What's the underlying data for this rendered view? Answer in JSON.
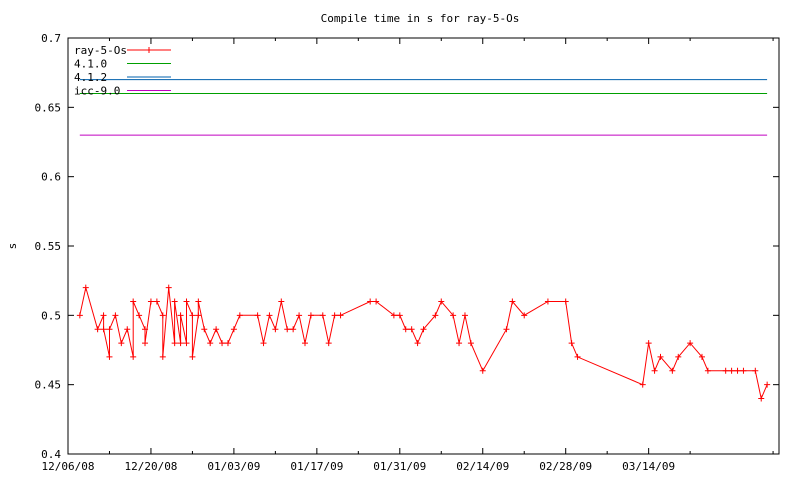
{
  "chart_data": {
    "type": "line",
    "title": "Compile time in s for ray-5-Os",
    "xlabel": "",
    "ylabel": "s",
    "ylim": [
      0.4,
      0.7
    ],
    "yticks": [
      "0.4",
      "0.45",
      "0.5",
      "0.55",
      "0.6",
      "0.65",
      "0.7"
    ],
    "xlim": [
      "12/06/08",
      "04/05/09"
    ],
    "xticks": [
      "12/06/08",
      "12/20/08",
      "01/03/09",
      "01/17/09",
      "01/31/09",
      "02/14/09",
      "02/28/09",
      "03/14/09"
    ],
    "grid": false,
    "legend_position": "top-left",
    "series": [
      {
        "name": "ray-5-Os",
        "color": "#ff0000",
        "marker": "plus",
        "points": [
          [
            "12/08/08",
            0.5
          ],
          [
            "12/09/08",
            0.52
          ],
          [
            "12/11/08",
            0.49
          ],
          [
            "12/12/08",
            0.5
          ],
          [
            "12/12/08",
            0.49
          ],
          [
            "12/13/08",
            0.47
          ],
          [
            "12/13/08",
            0.49
          ],
          [
            "12/14/08",
            0.5
          ],
          [
            "12/15/08",
            0.48
          ],
          [
            "12/16/08",
            0.49
          ],
          [
            "12/17/08",
            0.47
          ],
          [
            "12/17/08",
            0.51
          ],
          [
            "12/18/08",
            0.5
          ],
          [
            "12/19/08",
            0.49
          ],
          [
            "12/19/08",
            0.48
          ],
          [
            "12/20/08",
            0.51
          ],
          [
            "12/21/08",
            0.51
          ],
          [
            "12/22/08",
            0.5
          ],
          [
            "12/22/08",
            0.47
          ],
          [
            "12/23/08",
            0.52
          ],
          [
            "12/24/08",
            0.48
          ],
          [
            "12/24/08",
            0.51
          ],
          [
            "12/25/08",
            0.48
          ],
          [
            "12/25/08",
            0.5
          ],
          [
            "12/26/08",
            0.48
          ],
          [
            "12/26/08",
            0.51
          ],
          [
            "12/27/08",
            0.5
          ],
          [
            "12/27/08",
            0.47
          ],
          [
            "12/28/08",
            0.5
          ],
          [
            "12/28/08",
            0.51
          ],
          [
            "12/29/08",
            0.49
          ],
          [
            "12/30/08",
            0.48
          ],
          [
            "12/31/08",
            0.49
          ],
          [
            "01/01/09",
            0.48
          ],
          [
            "01/02/09",
            0.48
          ],
          [
            "01/03/09",
            0.49
          ],
          [
            "01/04/09",
            0.5
          ],
          [
            "01/07/09",
            0.5
          ],
          [
            "01/08/09",
            0.48
          ],
          [
            "01/09/09",
            0.5
          ],
          [
            "01/10/09",
            0.49
          ],
          [
            "01/11/09",
            0.51
          ],
          [
            "01/12/09",
            0.49
          ],
          [
            "01/13/09",
            0.49
          ],
          [
            "01/14/09",
            0.5
          ],
          [
            "01/15/09",
            0.48
          ],
          [
            "01/16/09",
            0.5
          ],
          [
            "01/18/09",
            0.5
          ],
          [
            "01/19/09",
            0.48
          ],
          [
            "01/20/09",
            0.5
          ],
          [
            "01/21/09",
            0.5
          ],
          [
            "01/26/09",
            0.51
          ],
          [
            "01/27/09",
            0.51
          ],
          [
            "01/30/09",
            0.5
          ],
          [
            "01/31/09",
            0.5
          ],
          [
            "02/01/09",
            0.49
          ],
          [
            "02/02/09",
            0.49
          ],
          [
            "02/03/09",
            0.48
          ],
          [
            "02/04/09",
            0.49
          ],
          [
            "02/06/09",
            0.5
          ],
          [
            "02/07/09",
            0.51
          ],
          [
            "02/09/09",
            0.5
          ],
          [
            "02/10/09",
            0.48
          ],
          [
            "02/11/09",
            0.5
          ],
          [
            "02/12/09",
            0.48
          ],
          [
            "02/14/09",
            0.46
          ],
          [
            "02/18/09",
            0.49
          ],
          [
            "02/19/09",
            0.51
          ],
          [
            "02/21/09",
            0.5
          ],
          [
            "02/25/09",
            0.51
          ],
          [
            "02/28/09",
            0.51
          ],
          [
            "03/01/09",
            0.48
          ],
          [
            "03/02/09",
            0.47
          ],
          [
            "03/13/09",
            0.45
          ],
          [
            "03/14/09",
            0.48
          ],
          [
            "03/15/09",
            0.46
          ],
          [
            "03/16/09",
            0.47
          ],
          [
            "03/18/09",
            0.46
          ],
          [
            "03/19/09",
            0.47
          ],
          [
            "03/21/09",
            0.48
          ],
          [
            "03/23/09",
            0.47
          ],
          [
            "03/24/09",
            0.46
          ],
          [
            "03/27/09",
            0.46
          ],
          [
            "03/28/09",
            0.46
          ],
          [
            "03/29/09",
            0.46
          ],
          [
            "03/30/09",
            0.46
          ],
          [
            "04/01/09",
            0.46
          ],
          [
            "04/02/09",
            0.44
          ],
          [
            "04/03/09",
            0.45
          ]
        ]
      },
      {
        "name": "4.1.0",
        "color": "#00a000",
        "marker": "none",
        "points": [
          [
            "12/08/08",
            0.66
          ],
          [
            "04/03/09",
            0.66
          ]
        ]
      },
      {
        "name": "4.1.2",
        "color": "#0060ad",
        "marker": "none",
        "points": [
          [
            "12/08/08",
            0.67
          ],
          [
            "04/03/09",
            0.67
          ]
        ]
      },
      {
        "name": "icc-9.0",
        "color": "#c000c0",
        "marker": "none",
        "points": [
          [
            "12/08/08",
            0.63
          ],
          [
            "04/03/09",
            0.63
          ]
        ]
      }
    ]
  }
}
